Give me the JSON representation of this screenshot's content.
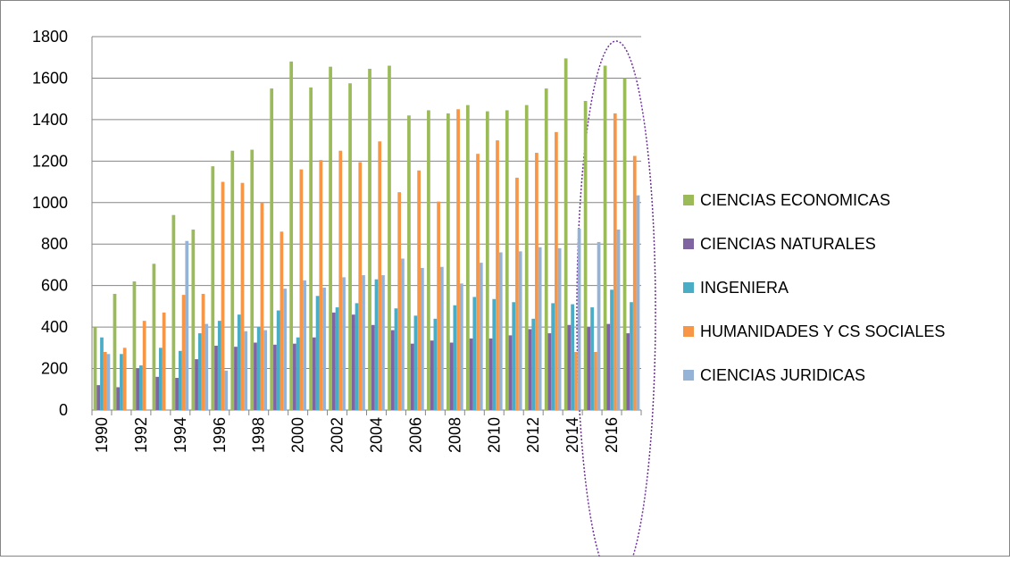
{
  "chart_data": {
    "type": "bar",
    "categories": [
      "1990",
      null,
      "1992",
      null,
      "1994",
      null,
      "1996",
      null,
      "1998",
      null,
      "2000",
      null,
      "2002",
      null,
      "2004",
      null,
      "2006",
      null,
      "2008",
      null,
      "2010",
      null,
      "2012",
      null,
      "2014",
      null,
      "2016",
      null
    ],
    "series": [
      {
        "name": "CIENCIAS ECONOMICAS",
        "color": "#9bbb59",
        "values": [
          400,
          560,
          620,
          705,
          940,
          870,
          1175,
          1250,
          1255,
          1550,
          1680,
          1555,
          1655,
          1575,
          1645,
          1660,
          1420,
          1445,
          1430,
          1470,
          1440,
          1445,
          1470,
          1550,
          1695,
          1490,
          1660,
          1600
        ]
      },
      {
        "name": "CIENCIAS NATURALES",
        "color": "#8064a2",
        "values": [
          120,
          110,
          200,
          160,
          155,
          245,
          310,
          305,
          325,
          315,
          320,
          350,
          470,
          460,
          410,
          385,
          320,
          335,
          325,
          345,
          345,
          360,
          390,
          370,
          410,
          400,
          415,
          370
        ]
      },
      {
        "name": "INGENIERA",
        "color": "#4bacc6",
        "values": [
          350,
          270,
          215,
          300,
          285,
          370,
          430,
          460,
          400,
          480,
          350,
          550,
          495,
          515,
          630,
          490,
          455,
          440,
          505,
          545,
          535,
          520,
          440,
          515,
          510,
          495,
          580,
          520
        ]
      },
      {
        "name": "HUMANIDADES Y CS SOCIALES",
        "color": "#f79646",
        "values": [
          280,
          300,
          430,
          470,
          555,
          560,
          1100,
          1095,
          1000,
          860,
          1160,
          1205,
          1250,
          1195,
          1295,
          1050,
          1155,
          1005,
          1450,
          1235,
          1300,
          1120,
          1240,
          1340,
          280,
          280,
          1430,
          1225
        ]
      },
      {
        "name": "CIENCIAS JURIDICAS",
        "color": "#95b3d7",
        "values": [
          270,
          0,
          0,
          0,
          815,
          415,
          190,
          380,
          385,
          585,
          625,
          590,
          640,
          650,
          650,
          730,
          685,
          690,
          610,
          710,
          760,
          765,
          785,
          780,
          875,
          810,
          870,
          1035
        ]
      }
    ],
    "ylim": [
      0,
      1800
    ],
    "yticks": [
      0,
      200,
      400,
      600,
      800,
      1000,
      1200,
      1400,
      1600,
      1800
    ],
    "grid": true,
    "legend": "right"
  }
}
